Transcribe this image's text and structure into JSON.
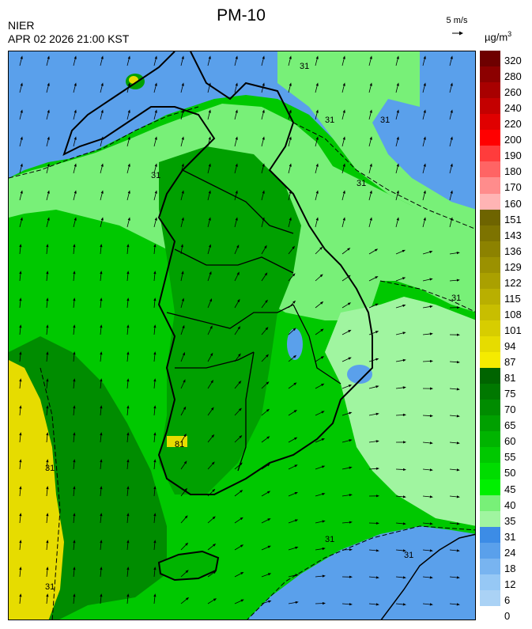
{
  "header": {
    "title": "PM-10",
    "agency": "NIER",
    "datetime": "APR 02 2026 21:00 KST",
    "wind_reference": "5 m/s",
    "unit_text": "µg/m",
    "unit_exponent": "3"
  },
  "legend": {
    "labels": [
      "320",
      "280",
      "260",
      "240",
      "220",
      "200",
      "190",
      "180",
      "170",
      "160",
      "151",
      "143",
      "136",
      "129",
      "122",
      "115",
      "108",
      "101",
      "94",
      "87",
      "81",
      "75",
      "70",
      "65",
      "60",
      "55",
      "50",
      "45",
      "40",
      "35",
      "31",
      "24",
      "18",
      "12",
      "6",
      "0"
    ],
    "colors": [
      "#6e0000",
      "#8c0000",
      "#a80000",
      "#c40000",
      "#e00000",
      "#ff0000",
      "#ff3c3c",
      "#ff6464",
      "#ff8c8c",
      "#ffb4b4",
      "#6e6400",
      "#7d7300",
      "#8c8200",
      "#9b9100",
      "#aaa000",
      "#b9af00",
      "#c8be00",
      "#d7cd00",
      "#e6dc00",
      "#f5eb00",
      "#006400",
      "#007800",
      "#008c00",
      "#00a000",
      "#00b400",
      "#00c800",
      "#00dc00",
      "#00f000",
      "#78f078",
      "#a0f5a0",
      "#3c8ce6",
      "#5aa0eb",
      "#78b4f0",
      "#96c8f5",
      "#aad2f5"
    ]
  },
  "map": {
    "contour_labels": [
      "31",
      "31",
      "31",
      "31",
      "31",
      "31",
      "31",
      "31",
      "31",
      "81",
      "31"
    ]
  }
}
